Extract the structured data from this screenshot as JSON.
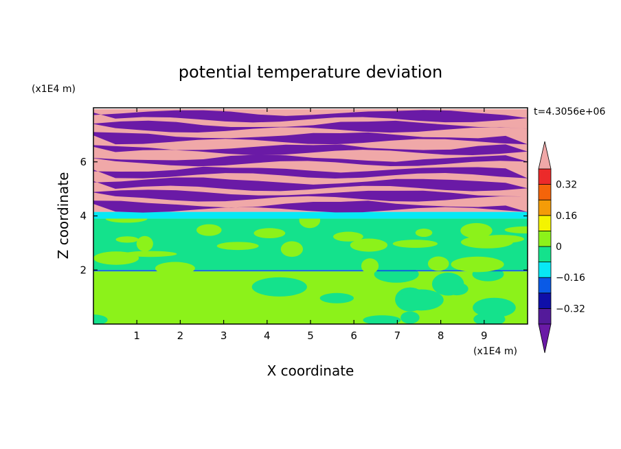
{
  "chart_data": {
    "type": "heatmap",
    "title": "potential temperature deviation",
    "xlabel": "X coordinate",
    "ylabel": "Z coordinate",
    "x_unit": "(x1E4 m)",
    "y_unit": "(x1E4 m)",
    "time_label": "t=4.3056e+06",
    "xlim": [
      0,
      10
    ],
    "ylim": [
      0,
      8
    ],
    "x_ticks": [
      1,
      2,
      3,
      4,
      5,
      6,
      7,
      8,
      9
    ],
    "y_ticks": [
      2,
      4,
      6
    ],
    "colorbar": {
      "levels": [
        -0.4,
        -0.32,
        -0.24,
        -0.16,
        -0.08,
        0,
        0.08,
        0.16,
        0.24,
        0.32,
        0.4
      ],
      "labeled_values": [
        "0.32",
        "0.16",
        "0",
        "−0.16",
        "−0.32"
      ],
      "bin_colors_low_to_high": [
        "#541a9a",
        "#0f0fa8",
        "#0a5ae6",
        "#08e8f4",
        "#14e28c",
        "#8cf21a",
        "#f4f400",
        "#f49c08",
        "#f4640a",
        "#ec2a2a"
      ],
      "under_color": "#6a1aa6",
      "over_color": "#f0a8a8"
    },
    "layers": [
      {
        "z_range": [
          0,
          1.95
        ],
        "dominant_color": "#8cf21a",
        "secondary_color": "#14e28c",
        "pattern": "convective plumes"
      },
      {
        "z_range": [
          1.95,
          2.0
        ],
        "dominant_color": "#0a5ae6",
        "pattern": "thin interface line"
      },
      {
        "z_range": [
          2.0,
          3.9
        ],
        "dominant_color": "#14e28c",
        "secondary_color": "#8cf21a",
        "pattern": "patchy"
      },
      {
        "z_range": [
          3.9,
          4.15
        ],
        "dominant_color": "#08e8f4",
        "pattern": "band"
      },
      {
        "z_range": [
          4.15,
          7.95
        ],
        "dominant_color": "#f0a8a8",
        "secondary_color": "#6a1aa6",
        "pattern": "alternating stratified layers"
      }
    ]
  }
}
